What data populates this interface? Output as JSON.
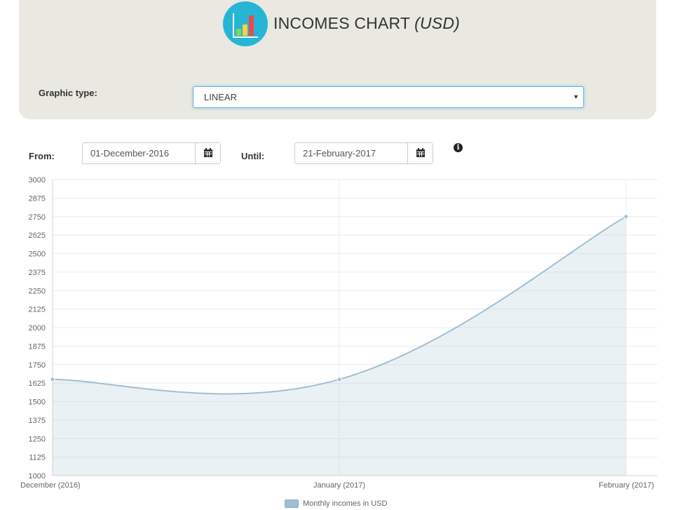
{
  "header": {
    "title": "INCOMES CHART",
    "title_unit": "(USD)",
    "logo_icon": "bar-chart-icon"
  },
  "controls": {
    "graphic_type_label": "Graphic type:",
    "graphic_type_value": "LINEAR",
    "from_label": "From:",
    "from_value": "01-December-2016",
    "until_label": "Until:",
    "until_value": "21-February-2017",
    "calendar_icon": "calendar-icon",
    "info_icon": "info-icon"
  },
  "chart_data": {
    "type": "area",
    "categories": [
      "December (2016)",
      "January (2017)",
      "February (2017)"
    ],
    "series": [
      {
        "name": "Monthly incomes in USD",
        "values": [
          1650,
          1650,
          2750
        ],
        "color": "#9fbfd3"
      }
    ],
    "ylim": [
      1000,
      3000
    ],
    "yticks": [
      "3000",
      "2875",
      "2750",
      "2625",
      "2500",
      "2375",
      "2250",
      "2125",
      "2000",
      "1875",
      "1750",
      "1625",
      "1500",
      "1375",
      "1250",
      "1125",
      "1000"
    ],
    "grid": true,
    "legend_position": "bottom"
  }
}
